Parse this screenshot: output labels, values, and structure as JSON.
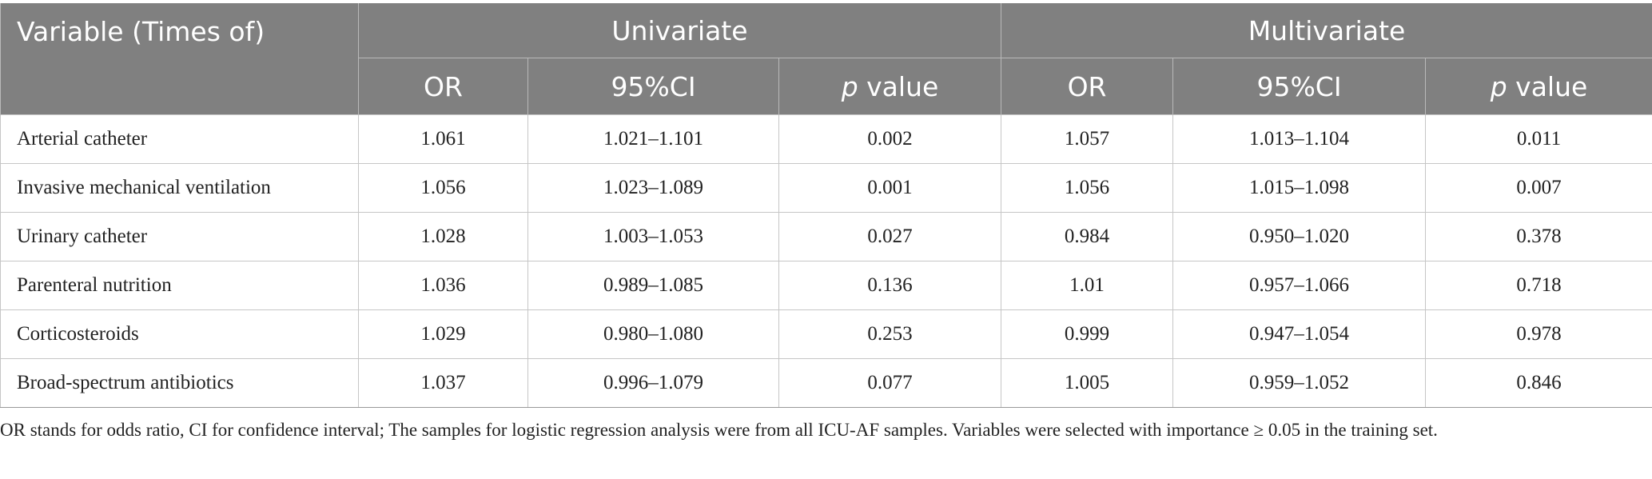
{
  "header": {
    "variable": "Variable (Times of)",
    "groups": [
      "Univariate",
      "Multivariate"
    ],
    "sub": [
      {
        "type": "plain",
        "text": "OR"
      },
      {
        "type": "plain",
        "text": "95%CI"
      },
      {
        "type": "p",
        "p": "p",
        "rest": " value"
      },
      {
        "type": "plain",
        "text": "OR"
      },
      {
        "type": "plain",
        "text": "95%CI"
      },
      {
        "type": "p",
        "p": "p",
        "rest": " value"
      }
    ]
  },
  "rows": [
    {
      "variable": "Arterial catheter",
      "uni_or": "1.061",
      "uni_ci": "1.021–1.101",
      "uni_p": "0.002",
      "multi_or": "1.057",
      "multi_ci": "1.013–1.104",
      "multi_p": "0.011"
    },
    {
      "variable": "Invasive mechanical ventilation",
      "uni_or": "1.056",
      "uni_ci": "1.023–1.089",
      "uni_p": "0.001",
      "multi_or": "1.056",
      "multi_ci": "1.015–1.098",
      "multi_p": "0.007"
    },
    {
      "variable": "Urinary catheter",
      "uni_or": "1.028",
      "uni_ci": "1.003–1.053",
      "uni_p": "0.027",
      "multi_or": "0.984",
      "multi_ci": "0.950–1.020",
      "multi_p": "0.378"
    },
    {
      "variable": "Parenteral nutrition",
      "uni_or": "1.036",
      "uni_ci": "0.989–1.085",
      "uni_p": "0.136",
      "multi_or": "1.01",
      "multi_ci": "0.957–1.066",
      "multi_p": "0.718"
    },
    {
      "variable": "Corticosteroids",
      "uni_or": "1.029",
      "uni_ci": "0.980–1.080",
      "uni_p": "0.253",
      "multi_or": "0.999",
      "multi_ci": "0.947–1.054",
      "multi_p": "0.978"
    },
    {
      "variable": "Broad-spectrum antibiotics",
      "uni_or": "1.037",
      "uni_ci": "0.996–1.079",
      "uni_p": "0.077",
      "multi_or": "1.005",
      "multi_ci": "0.959–1.052",
      "multi_p": "0.846"
    }
  ],
  "footnote": "OR stands for odds ratio, CI for confidence interval; The samples for logistic regression analysis were from all ICU-AF samples. Variables were selected with importance ≥ 0.05 in the training set.",
  "colors": {
    "header_bg": "#808080",
    "header_text": "#ffffff",
    "grid": "#c6c6c6"
  }
}
